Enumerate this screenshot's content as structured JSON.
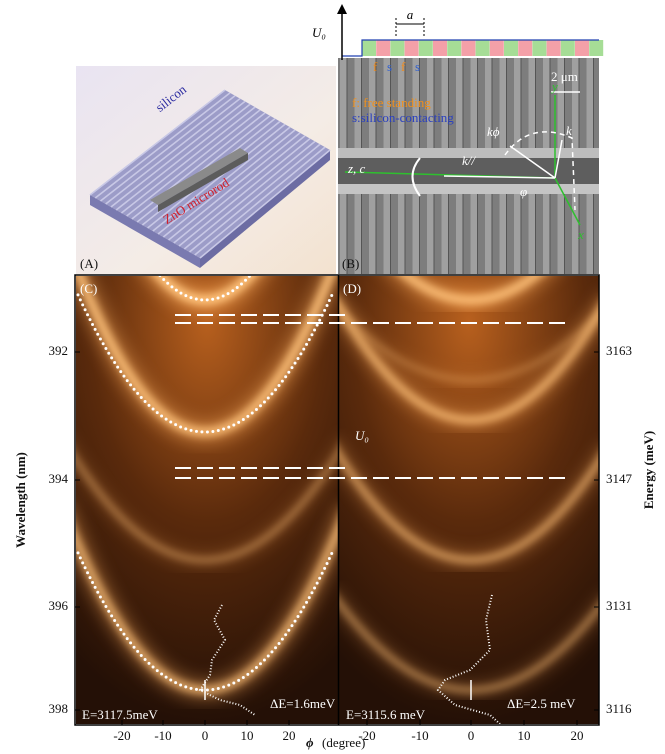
{
  "panels": {
    "a": {
      "label": "(A)",
      "silicon": "silicon",
      "microrod": "ZnO microrod"
    },
    "b": {
      "label": "(B)",
      "potential": "U₀",
      "period": "a",
      "segments": [
        "f",
        "s",
        "f",
        "s"
      ],
      "scale_bar": "2 μm",
      "legend_f": "f: free standing",
      "legend_s": "s:silicon-contacting",
      "axis_y": "y",
      "axis_x": "x",
      "axis_z": "z, c",
      "k_phi": "kϕ",
      "k": "k",
      "k_par": "k//",
      "angle": "φ"
    },
    "c": {
      "label": "(C)",
      "energy": "E=3117.5meV",
      "width": "ΔE=1.6meV"
    },
    "d": {
      "label": "(D)",
      "potential": "U₀",
      "energy": "E=3115.6 meV",
      "width": "ΔE=2.5 meV"
    }
  },
  "axes": {
    "left": {
      "title": "Wavelength (nm)",
      "ticks": [
        "392",
        "394",
        "396",
        "398"
      ]
    },
    "right": {
      "title": "Energy (meV)",
      "ticks": [
        "3163",
        "3147",
        "3131",
        "3116"
      ]
    },
    "bottom": {
      "symbol": "ϕ",
      "unit": "(degree)",
      "ticks": [
        "-20",
        "-10",
        "0",
        "10",
        "20"
      ]
    }
  }
}
